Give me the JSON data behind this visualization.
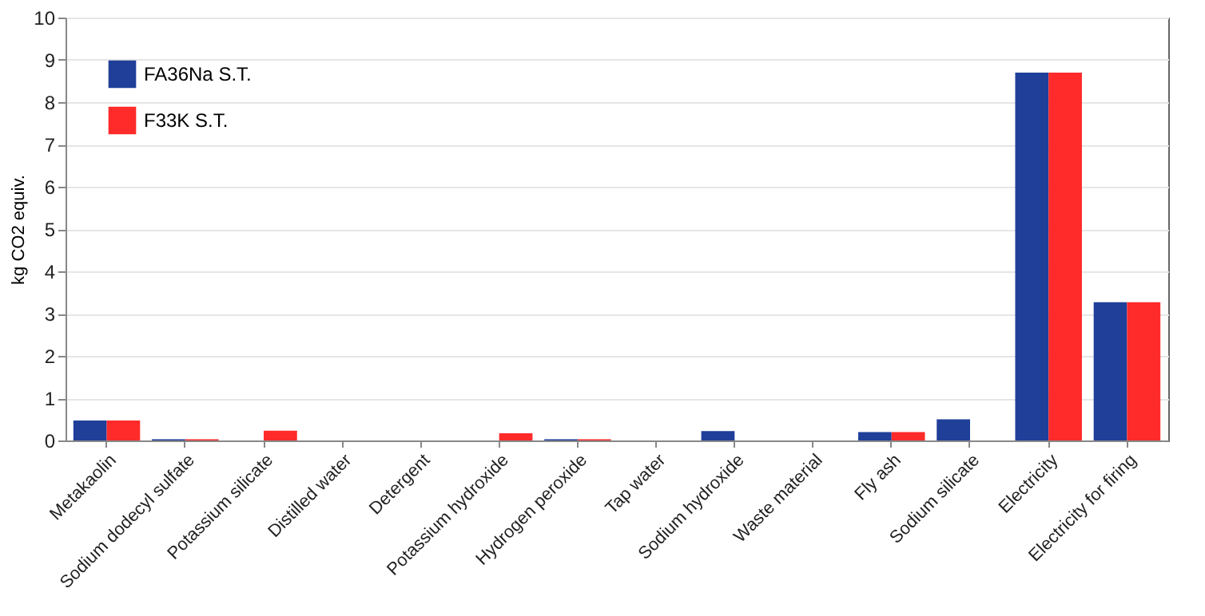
{
  "chart_data": {
    "type": "bar",
    "ylabel": "kg CO2 equiv.",
    "categories": [
      "Metakaolin",
      "Sodium dodecyl sulfate",
      "Potassium silicate",
      "Distilled water",
      "Detergent",
      "Potassium hydroxide",
      "Hydrogen peroxide",
      "Tap water",
      "Sodium hydroxide",
      "Waste material",
      "Fly ash",
      "Sodium silicate",
      "Electricity",
      "Electricity for firing"
    ],
    "series": [
      {
        "name": "FA36Na S.T.",
        "color": "#1f3f99",
        "values": [
          0.47,
          0.03,
          null,
          null,
          null,
          null,
          0.03,
          null,
          0.22,
          null,
          0.2,
          0.5,
          8.7,
          3.27
        ]
      },
      {
        "name": "F33K S.T.",
        "color": "#ff2b2b",
        "values": [
          0.47,
          0.03,
          0.23,
          null,
          null,
          0.17,
          0.03,
          null,
          null,
          null,
          0.2,
          null,
          8.7,
          3.27
        ]
      }
    ],
    "ylim": [
      0,
      10
    ],
    "yticks": [
      0,
      1,
      2,
      3,
      4,
      5,
      6,
      7,
      8,
      9,
      10
    ],
    "grid": "y",
    "legend": "top left"
  }
}
